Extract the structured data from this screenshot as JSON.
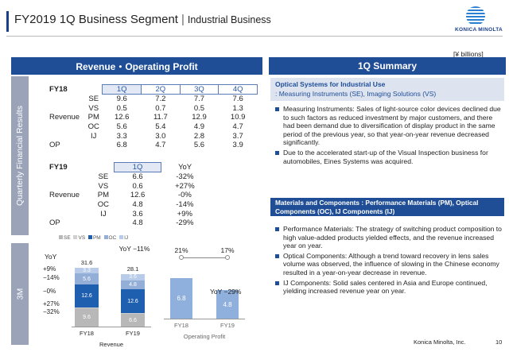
{
  "header": {
    "title": "FY2019 1Q Business Segment",
    "separator": "|",
    "subtitle": "Industrial Business",
    "logo_text": "KONICA MINOLTA"
  },
  "unit": "[¥ billions]",
  "left_panel": {
    "banner": "Revenue・Operating Profit",
    "side_label_quarterly": "Quarterly Financial Results",
    "side_label_3m": "3M",
    "fy18_table": {
      "year": "FY18",
      "quarters": [
        "1Q",
        "2Q",
        "3Q",
        "4Q"
      ],
      "revenue_label": "Revenue",
      "rows": [
        {
          "seg": "SE",
          "values": [
            "9.6",
            "7.2",
            "7.7",
            "7.6"
          ]
        },
        {
          "seg": "VS",
          "values": [
            "0.5",
            "0.7",
            "0.5",
            "1.3"
          ]
        },
        {
          "seg": "PM",
          "values": [
            "12.6",
            "11.7",
            "12.9",
            "10.9"
          ]
        },
        {
          "seg": "OC",
          "values": [
            "5.6",
            "5.4",
            "4.9",
            "4.7"
          ]
        },
        {
          "seg": "IJ",
          "values": [
            "3.3",
            "3.0",
            "2.8",
            "3.7"
          ]
        }
      ],
      "op_label": "OP",
      "op_values": [
        "6.8",
        "4.7",
        "5.6",
        "3.9"
      ]
    },
    "fy19_table": {
      "year": "FY19",
      "quarter": "1Q",
      "yoy_header": "YoY",
      "revenue_label": "Revenue",
      "rows": [
        {
          "seg": "SE",
          "value": "6.6",
          "yoy": "-32%"
        },
        {
          "seg": "VS",
          "value": "0.6",
          "yoy": "+27%"
        },
        {
          "seg": "PM",
          "value": "12.6",
          "yoy": "-0%"
        },
        {
          "seg": "OC",
          "value": "4.8",
          "yoy": "-14%"
        },
        {
          "seg": "IJ",
          "value": "3.6",
          "yoy": "+9%"
        }
      ],
      "op_label": "OP",
      "op_value": "4.8",
      "op_yoy": "-29%"
    },
    "legend": [
      "SE",
      "VS",
      "PM",
      "OC",
      "IJ"
    ],
    "colors": {
      "SE": "#b8b8b8",
      "VS": "#d0d0d0",
      "PM": "#1f5fb0",
      "OC": "#93afd8",
      "IJ": "#b8cbe8",
      "OP": "#8fb0dd"
    }
  },
  "chart_data": [
    {
      "type": "bar",
      "title": "",
      "xlabel": "Revenue",
      "categories": [
        "FY18",
        "FY19"
      ],
      "series": [
        {
          "name": "SE",
          "values": [
            9.6,
            6.6
          ]
        },
        {
          "name": "VS",
          "values": [
            0.5,
            0.6
          ]
        },
        {
          "name": "PM",
          "values": [
            12.6,
            12.6
          ]
        },
        {
          "name": "OC",
          "values": [
            5.6,
            4.8
          ]
        },
        {
          "name": "IJ",
          "values": [
            3.3,
            3.6
          ]
        }
      ],
      "totals": [
        "31.6",
        "28.1"
      ],
      "yoy_total": "YoY −11%",
      "yoy_segments": {
        "label": "YoY",
        "IJ": "+9%",
        "OC": "−14%",
        "PM": "−0%",
        "VS": "+27%",
        "SE": "−32%"
      },
      "legend_position": "top"
    },
    {
      "type": "bar",
      "title": "",
      "xlabel": "Operating Profit",
      "categories": [
        "FY18",
        "FY19"
      ],
      "values": [
        6.8,
        4.8
      ],
      "margin_line": [
        "21%",
        "17%"
      ],
      "yoy_label": "YoY −29%"
    }
  ],
  "summary": {
    "banner": "1Q Summary",
    "section1_title": "Optical Systems for Industrial Use",
    "section1_sub": ": Measuring Instruments (SE), Imaging Solutions (VS)",
    "section1_bullets": [
      "Measuring Instruments: Sales of light-source color devices declined due to such factors as reduced investment by major customers, and there had been demand due to diversification of display product in the same period of the previous year, so that year-on-year revenue decreased significantly.",
      "Due to the accelerated start-up of the Visual Inspection business for automobiles, Eines Systems was acquired."
    ],
    "section2_title": "Materials and Components : Performance Materials (PM), Optical Components (OC), IJ Components (IJ)",
    "section2_bullets": [
      "Performance Materials: The strategy of switching product composition to high value-added products yielded effects, and the revenue increased year on year.",
      "Optical Components: Although a trend toward recovery in lens sales volume was observed, the influence of slowing in the Chinese economy resulted in a year-on-year decrease in revenue.",
      "IJ Components: Solid sales centered in Asia and Europe continued, yielding increased revenue year on year."
    ]
  },
  "footer": {
    "company": "Konica Minolta, Inc.",
    "page": "10"
  }
}
